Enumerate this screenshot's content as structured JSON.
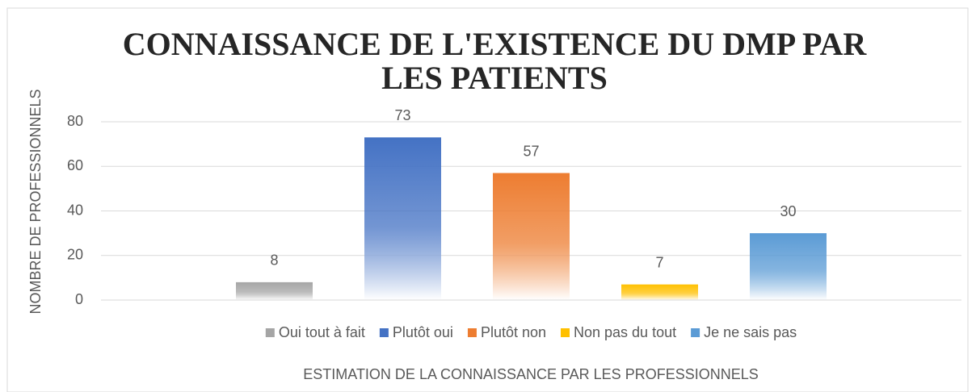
{
  "chart_data": {
    "type": "bar",
    "title": "CONNAISSANCE DE L'EXISTENCE DU DMP PAR LES PATIENTS",
    "x_label": "ESTIMATION DE LA CONNAISSANCE PAR LES PROFESSIONNELS",
    "y_label": "NOMBRE DE PROFESSIONNELS",
    "categories": [
      null
    ],
    "series": [
      {
        "name": "Oui tout à fait",
        "color": "#a5a5a5",
        "values": [
          8
        ]
      },
      {
        "name": "Plutôt oui",
        "color": "#4472c4",
        "values": [
          73
        ]
      },
      {
        "name": "Plutôt non",
        "color": "#ed7d31",
        "values": [
          57
        ]
      },
      {
        "name": "Non pas du tout",
        "color": "#ffc000",
        "values": [
          7
        ]
      },
      {
        "name": "Je ne sais pas",
        "color": "#5b9bd5",
        "values": [
          30
        ]
      }
    ],
    "ylim": [
      0,
      80
    ],
    "yticks": [
      0,
      20,
      40,
      60,
      80
    ],
    "grid": true,
    "legend": "bottom"
  }
}
